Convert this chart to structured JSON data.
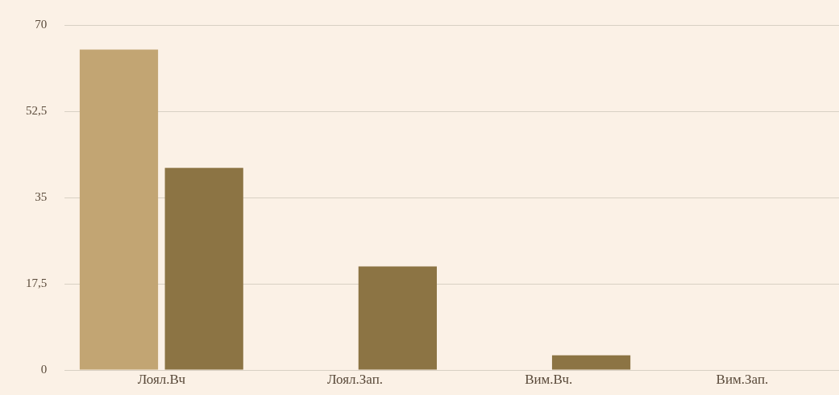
{
  "chart_data": {
    "type": "bar",
    "categories": [
      "Лоял.Вч",
      "Лоял.Зап.",
      "Вим.Вч.",
      "Вим.Зап."
    ],
    "series": [
      {
        "color": "#c2a573",
        "values": [
          65,
          0,
          0,
          0
        ]
      },
      {
        "color": "#8c7444",
        "values": [
          41,
          21,
          3,
          0
        ]
      }
    ],
    "ylim": [
      0,
      70
    ],
    "yticks": [
      0,
      {
        "value": 17.5,
        "label": "17,5"
      },
      35,
      {
        "value": 52.5,
        "label": "52,5"
      },
      70
    ],
    "grid": "y"
  }
}
